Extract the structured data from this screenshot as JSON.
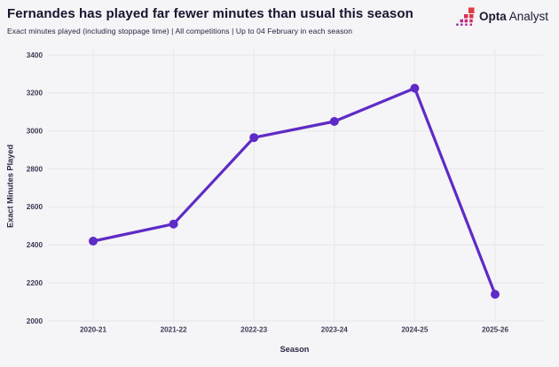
{
  "header": {
    "title": "Fernandes has played far fewer minutes than usual this season",
    "subtitle": "Exact minutes played (including stoppage time) | All competitions | Up to 04 February in each season",
    "logo": {
      "brand_bold": "Opta",
      "brand_regular": "Analyst"
    }
  },
  "colors": {
    "background": "#F5F4F6",
    "line": "#5E2BC6",
    "grid": "#E9E8EC",
    "title_text": "#17152E",
    "axis_text": "#3D3B55",
    "logo_text": "#1C1A33",
    "logo_square_red": "#E23B42",
    "logo_square_crimson": "#D93050",
    "logo_square_magenta": "#C62875",
    "logo_square_purple": "#8C2F9E"
  },
  "chart_data": {
    "type": "line",
    "categories": [
      "2020-21",
      "2021-22",
      "2022-23",
      "2023-24",
      "2024-25",
      "2025-26"
    ],
    "values": [
      2420,
      2510,
      2965,
      3050,
      3225,
      2140
    ],
    "series_name": "Exact minutes played",
    "title": "Fernandes has played far fewer minutes than usual this season",
    "xlabel": "Season",
    "ylabel": "Exact Minutes Played",
    "ylim": [
      2000,
      3400
    ],
    "ytick_step": 200,
    "yticks": [
      2000,
      2200,
      2400,
      2600,
      2800,
      3000,
      3200,
      3400
    ],
    "grid": true,
    "legend": "none",
    "marker": "circle"
  }
}
